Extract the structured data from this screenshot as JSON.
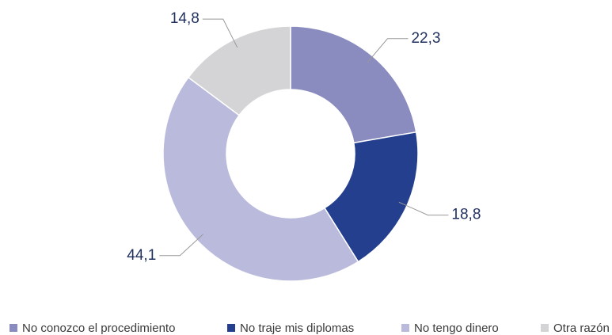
{
  "chart_data": {
    "type": "donut",
    "categories": [
      "No conozco el procedimiento",
      "No traje mis diplomas",
      "No tengo dinero",
      "Otra razón"
    ],
    "values": [
      22.3,
      18.8,
      44.1,
      14.8
    ],
    "value_labels": [
      "22,3",
      "18,8",
      "44,1",
      "14,8"
    ],
    "colors": [
      "#8a8bbf",
      "#253f8f",
      "#babbdc",
      "#d4d4d6"
    ],
    "legend": "bottom"
  }
}
